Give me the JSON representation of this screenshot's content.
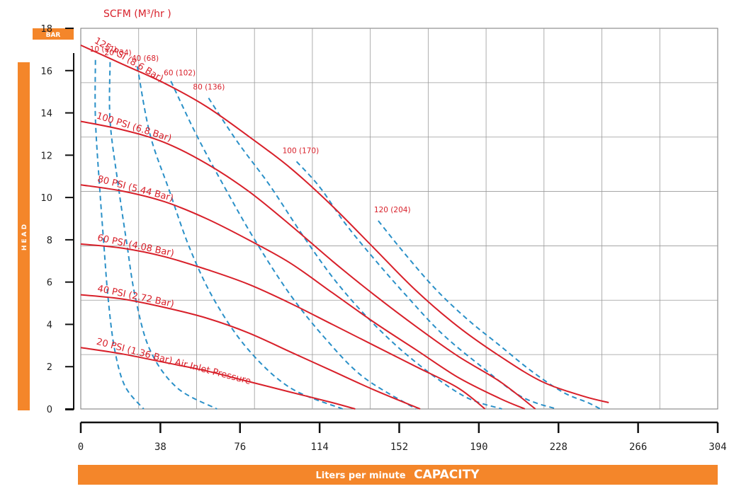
{
  "chart_data": {
    "type": "line",
    "title": "SCFM (M³/hr )",
    "y_unit": "BAR",
    "ylabel": "HEAD",
    "xlabel_prefix": "Liters per minute",
    "xlabel_main": "CAPACITY",
    "xlim": [
      0,
      304
    ],
    "ylim": [
      0,
      18
    ],
    "x_ticks": [
      "0",
      "38",
      "76",
      "114",
      "152",
      "190",
      "228",
      "266",
      "304"
    ],
    "y_ticks": [
      "0",
      "2",
      "4",
      "6",
      "8",
      "10",
      "12",
      "14",
      "16",
      "18"
    ],
    "grid": true,
    "psi_curves": [
      {
        "name": "125 PSI (8.6 Bar)",
        "color": "#d8202a",
        "points": [
          [
            0,
            17.2
          ],
          [
            20,
            16.3
          ],
          [
            40,
            15.4
          ],
          [
            60,
            14.3
          ],
          [
            80,
            12.9
          ],
          [
            100,
            11.4
          ],
          [
            120,
            9.6
          ],
          [
            140,
            7.6
          ],
          [
            160,
            5.6
          ],
          [
            180,
            3.9
          ],
          [
            200,
            2.5
          ],
          [
            220,
            1.3
          ],
          [
            240,
            0.6
          ],
          [
            252,
            0.3
          ]
        ]
      },
      {
        "name": "100 PSI (6.8 Bar)",
        "color": "#d8202a",
        "points": [
          [
            0,
            13.6
          ],
          [
            20,
            13.2
          ],
          [
            40,
            12.6
          ],
          [
            60,
            11.6
          ],
          [
            80,
            10.3
          ],
          [
            100,
            8.7
          ],
          [
            120,
            7.0
          ],
          [
            140,
            5.4
          ],
          [
            160,
            3.9
          ],
          [
            180,
            2.5
          ],
          [
            200,
            1.3
          ],
          [
            217,
            0
          ]
        ]
      },
      {
        "name": "80 PSI (5.44 Bar)",
        "color": "#d8202a",
        "points": [
          [
            0,
            10.6
          ],
          [
            20,
            10.3
          ],
          [
            40,
            9.8
          ],
          [
            60,
            9.0
          ],
          [
            80,
            8.0
          ],
          [
            100,
            6.9
          ],
          [
            120,
            5.5
          ],
          [
            140,
            4.1
          ],
          [
            160,
            2.8
          ],
          [
            180,
            1.5
          ],
          [
            200,
            0.5
          ],
          [
            212,
            0
          ]
        ]
      },
      {
        "name": "60 PSI (4.08 Bar)",
        "color": "#d8202a",
        "points": [
          [
            0,
            7.8
          ],
          [
            20,
            7.6
          ],
          [
            40,
            7.2
          ],
          [
            60,
            6.6
          ],
          [
            80,
            5.9
          ],
          [
            100,
            5.0
          ],
          [
            120,
            4.0
          ],
          [
            140,
            3.0
          ],
          [
            160,
            2.0
          ],
          [
            180,
            1.0
          ],
          [
            193,
            0
          ]
        ]
      },
      {
        "name": "40 PSI (2.72 Bar)",
        "color": "#d8202a",
        "points": [
          [
            0,
            5.4
          ],
          [
            20,
            5.2
          ],
          [
            40,
            4.8
          ],
          [
            60,
            4.3
          ],
          [
            80,
            3.6
          ],
          [
            100,
            2.7
          ],
          [
            120,
            1.8
          ],
          [
            140,
            0.9
          ],
          [
            162,
            0
          ]
        ]
      },
      {
        "name": "20 PSI (1.36 Bar) Air Inlet Pressure",
        "color": "#d8202a",
        "points": [
          [
            0,
            2.9
          ],
          [
            20,
            2.6
          ],
          [
            40,
            2.2
          ],
          [
            60,
            1.8
          ],
          [
            80,
            1.3
          ],
          [
            100,
            0.8
          ],
          [
            120,
            0.3
          ],
          [
            131,
            0
          ]
        ]
      }
    ],
    "air_curves": [
      {
        "name": "10 (17)",
        "color": "#2a90c8",
        "points": [
          [
            7,
            16.5
          ],
          [
            7,
            13.7
          ],
          [
            9,
            10.5
          ],
          [
            11,
            7.8
          ],
          [
            13,
            5.3
          ],
          [
            16,
            2.9
          ],
          [
            21,
            1.1
          ],
          [
            30,
            0
          ]
        ]
      },
      {
        "name": "20 (34)",
        "color": "#2a90c8",
        "points": [
          [
            14,
            16.4
          ],
          [
            14,
            13.6
          ],
          [
            18,
            10.5
          ],
          [
            22,
            7.8
          ],
          [
            26,
            5.3
          ],
          [
            33,
            2.8
          ],
          [
            46,
            1.0
          ],
          [
            65,
            0
          ]
        ]
      },
      {
        "name": "40 (68)",
        "color": "#2a90c8",
        "points": [
          [
            27,
            16.2
          ],
          [
            33,
            13.0
          ],
          [
            42,
            10.4
          ],
          [
            52,
            7.6
          ],
          [
            64,
            5.1
          ],
          [
            80,
            2.8
          ],
          [
            100,
            1.0
          ],
          [
            125,
            0
          ]
        ]
      },
      {
        "name": "60 (102)",
        "color": "#2a90c8",
        "points": [
          [
            43,
            15.5
          ],
          [
            55,
            13.0
          ],
          [
            68,
            10.6
          ],
          [
            83,
            8.0
          ],
          [
            100,
            5.4
          ],
          [
            117,
            3.3
          ],
          [
            135,
            1.5
          ],
          [
            160,
            0
          ]
        ]
      },
      {
        "name": "80 (136)",
        "color": "#2a90c8",
        "points": [
          [
            61,
            14.7
          ],
          [
            75,
            12.6
          ],
          [
            90,
            10.6
          ],
          [
            106,
            8.2
          ],
          [
            122,
            6.0
          ],
          [
            140,
            4.0
          ],
          [
            160,
            2.2
          ],
          [
            183,
            0.6
          ],
          [
            201,
            0
          ]
        ]
      },
      {
        "name": "100 (170)",
        "color": "#2a90c8",
        "points": [
          [
            103,
            11.7
          ],
          [
            114,
            10.5
          ],
          [
            126,
            8.8
          ],
          [
            140,
            7.1
          ],
          [
            155,
            5.4
          ],
          [
            172,
            3.6
          ],
          [
            190,
            2.1
          ],
          [
            210,
            0.6
          ],
          [
            227,
            0
          ]
        ]
      },
      {
        "name": "120 (204)",
        "color": "#2a90c8",
        "points": [
          [
            142,
            8.9
          ],
          [
            155,
            7.3
          ],
          [
            170,
            5.6
          ],
          [
            185,
            4.2
          ],
          [
            200,
            3.0
          ],
          [
            215,
            1.8
          ],
          [
            230,
            0.8
          ],
          [
            242,
            0.3
          ],
          [
            248,
            0
          ]
        ]
      }
    ]
  }
}
